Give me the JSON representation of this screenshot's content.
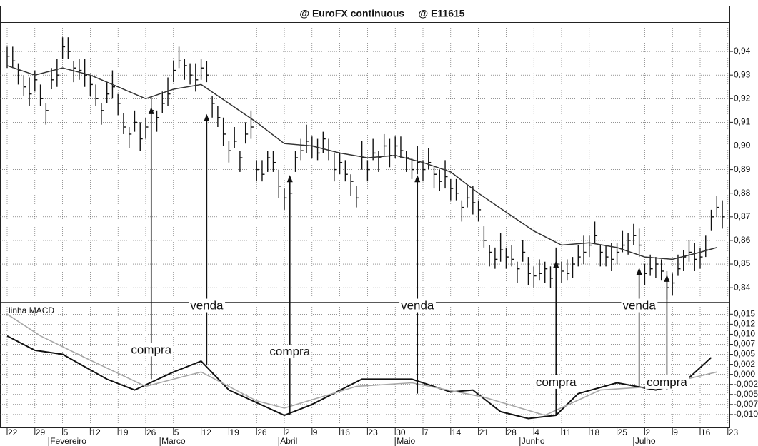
{
  "chart_data": [
    {
      "type": "ohlc",
      "title": "@ EuroFX continuous     @ E11615",
      "ylim": [
        0.8337,
        0.9518
      ],
      "yticks": [
        {
          "value": 0.94,
          "label": "0,94"
        },
        {
          "value": 0.93,
          "label": "0,93"
        },
        {
          "value": 0.92,
          "label": "0,92"
        },
        {
          "value": 0.91,
          "label": "0,91"
        },
        {
          "value": 0.9,
          "label": "0,90"
        },
        {
          "value": 0.89,
          "label": "0,89"
        },
        {
          "value": 0.88,
          "label": "0,88"
        },
        {
          "value": 0.87,
          "label": "0,87"
        },
        {
          "value": 0.86,
          "label": "0,86"
        },
        {
          "value": 0.85,
          "label": "0,85"
        },
        {
          "value": 0.84,
          "label": "0,84"
        }
      ],
      "grid": true,
      "color": "#111111",
      "high": [
        0.942,
        0.942,
        0.935,
        0.93,
        0.929,
        0.932,
        0.926,
        0.918,
        0.933,
        0.937,
        0.946,
        0.946,
        0.936,
        0.937,
        0.937,
        0.93,
        0.926,
        0.918,
        0.927,
        0.932,
        0.922,
        0.914,
        0.908,
        0.915,
        0.91,
        0.912,
        0.921,
        0.915,
        0.923,
        0.929,
        0.936,
        0.942,
        0.937,
        0.935,
        0.935,
        0.937,
        0.936,
        0.921,
        0.917,
        0.912,
        0.902,
        0.908,
        0.898,
        0.91,
        0.915,
        0.894,
        0.894,
        0.898,
        0.898,
        0.89,
        0.882,
        0.886,
        0.898,
        0.903,
        0.909,
        0.904,
        0.903,
        0.906,
        0.903,
        0.897,
        0.897,
        0.894,
        0.888,
        0.883,
        0.902,
        0.894,
        0.903,
        0.898,
        0.905,
        0.903,
        0.904,
        0.904,
        0.898,
        0.895,
        0.9,
        0.894,
        0.899,
        0.891,
        0.89,
        0.894,
        0.886,
        0.886,
        0.877,
        0.883,
        0.883,
        0.877,
        0.866,
        0.858,
        0.857,
        0.863,
        0.857,
        0.858,
        0.851,
        0.86,
        0.853,
        0.849,
        0.852,
        0.851,
        0.849,
        0.857,
        0.851,
        0.852,
        0.853,
        0.858,
        0.862,
        0.862,
        0.868,
        0.858,
        0.858,
        0.859,
        0.859,
        0.864,
        0.863,
        0.867,
        0.865,
        0.85,
        0.854,
        0.853,
        0.852,
        0.847,
        0.846,
        0.854,
        0.856,
        0.86,
        0.859,
        0.857,
        0.862,
        0.873,
        0.879,
        0.877
      ],
      "low": [
        0.933,
        0.933,
        0.926,
        0.921,
        0.917,
        0.923,
        0.917,
        0.909,
        0.924,
        0.925,
        0.937,
        0.937,
        0.927,
        0.928,
        0.925,
        0.921,
        0.917,
        0.909,
        0.918,
        0.92,
        0.913,
        0.905,
        0.899,
        0.906,
        0.898,
        0.903,
        0.912,
        0.906,
        0.914,
        0.917,
        0.927,
        0.933,
        0.928,
        0.926,
        0.923,
        0.928,
        0.927,
        0.912,
        0.908,
        0.9,
        0.893,
        0.899,
        0.889,
        0.901,
        0.903,
        0.885,
        0.885,
        0.889,
        0.889,
        0.878,
        0.873,
        0.877,
        0.889,
        0.894,
        0.897,
        0.895,
        0.894,
        0.897,
        0.894,
        0.885,
        0.888,
        0.885,
        0.879,
        0.874,
        0.89,
        0.885,
        0.894,
        0.889,
        0.896,
        0.891,
        0.895,
        0.895,
        0.889,
        0.886,
        0.888,
        0.885,
        0.89,
        0.882,
        0.881,
        0.882,
        0.877,
        0.877,
        0.868,
        0.874,
        0.871,
        0.868,
        0.857,
        0.849,
        0.848,
        0.851,
        0.848,
        0.849,
        0.842,
        0.851,
        0.841,
        0.84,
        0.843,
        0.842,
        0.84,
        0.845,
        0.842,
        0.843,
        0.844,
        0.849,
        0.85,
        0.853,
        0.859,
        0.849,
        0.849,
        0.847,
        0.85,
        0.855,
        0.854,
        0.858,
        0.853,
        0.841,
        0.845,
        0.844,
        0.843,
        0.835,
        0.837,
        0.845,
        0.847,
        0.851,
        0.847,
        0.848,
        0.853,
        0.864,
        0.87,
        0.865
      ],
      "close": [
        0.938,
        0.936,
        0.932,
        0.925,
        0.922,
        0.928,
        0.92,
        0.915,
        0.928,
        0.93,
        0.942,
        0.94,
        0.933,
        0.932,
        0.93,
        0.926,
        0.92,
        0.915,
        0.922,
        0.925,
        0.918,
        0.908,
        0.905,
        0.91,
        0.903,
        0.908,
        0.915,
        0.912,
        0.918,
        0.922,
        0.932,
        0.936,
        0.934,
        0.93,
        0.928,
        0.933,
        0.93,
        0.918,
        0.912,
        0.905,
        0.898,
        0.902,
        0.895,
        0.905,
        0.908,
        0.89,
        0.888,
        0.895,
        0.893,
        0.883,
        0.878,
        0.88,
        0.895,
        0.898,
        0.902,
        0.9,
        0.897,
        0.903,
        0.898,
        0.89,
        0.893,
        0.888,
        0.885,
        0.878,
        0.895,
        0.89,
        0.897,
        0.895,
        0.9,
        0.896,
        0.9,
        0.898,
        0.895,
        0.89,
        0.893,
        0.89,
        0.893,
        0.888,
        0.885,
        0.887,
        0.882,
        0.88,
        0.874,
        0.878,
        0.876,
        0.873,
        0.86,
        0.855,
        0.852,
        0.856,
        0.853,
        0.852,
        0.848,
        0.855,
        0.846,
        0.845,
        0.846,
        0.848,
        0.844,
        0.85,
        0.847,
        0.846,
        0.85,
        0.853,
        0.855,
        0.858,
        0.862,
        0.855,
        0.853,
        0.852,
        0.855,
        0.858,
        0.86,
        0.862,
        0.858,
        0.846,
        0.848,
        0.85,
        0.847,
        0.84,
        0.842,
        0.848,
        0.853,
        0.855,
        0.852,
        0.853,
        0.856,
        0.87,
        0.874,
        0.87
      ],
      "moving_average": {
        "color": "#333333",
        "x": [
          0,
          5,
          10,
          15,
          20,
          25,
          30,
          35,
          40,
          45,
          50,
          55,
          60,
          65,
          70,
          75,
          80,
          85,
          90,
          95,
          100,
          105,
          110,
          115,
          120,
          125,
          128
        ],
        "values": [
          0.934,
          0.93,
          0.933,
          0.93,
          0.925,
          0.92,
          0.924,
          0.926,
          0.918,
          0.91,
          0.901,
          0.9,
          0.897,
          0.895,
          0.896,
          0.893,
          0.889,
          0.88,
          0.872,
          0.864,
          0.858,
          0.859,
          0.857,
          0.853,
          0.852,
          0.855,
          0.857
        ]
      }
    },
    {
      "type": "line",
      "label": "linha MACD",
      "ylim": [
        -0.0134,
        0.0179
      ],
      "yticks": [
        {
          "value": 0.015,
          "label": "0,015"
        },
        {
          "value": 0.0125,
          "label": "0,012"
        },
        {
          "value": 0.01,
          "label": "0,010"
        },
        {
          "value": 0.0075,
          "label": "0,007"
        },
        {
          "value": 0.005,
          "label": "0,005"
        },
        {
          "value": 0.0025,
          "label": "0,002"
        },
        {
          "value": 0,
          "label": "0,000"
        },
        {
          "value": -0.0025,
          "label": "-0,002"
        },
        {
          "value": -0.005,
          "label": "-0,005"
        },
        {
          "value": -0.0075,
          "label": "-0,007"
        },
        {
          "value": -0.01,
          "label": "-0,010"
        }
      ],
      "xlim": [
        -1,
        130.5
      ],
      "xticks": [
        {
          "value": 0,
          "label": "22"
        },
        {
          "value": 5,
          "label": "29"
        },
        {
          "value": 10,
          "label": "5"
        },
        {
          "value": 15,
          "label": "12"
        },
        {
          "value": 20,
          "label": "19"
        },
        {
          "value": 25,
          "label": "26"
        },
        {
          "value": 30,
          "label": "5"
        },
        {
          "value": 35,
          "label": "12"
        },
        {
          "value": 40,
          "label": "19"
        },
        {
          "value": 45,
          "label": "26"
        },
        {
          "value": 50,
          "label": "2"
        },
        {
          "value": 55,
          "label": "9"
        },
        {
          "value": 60,
          "label": "16"
        },
        {
          "value": 65,
          "label": "23"
        },
        {
          "value": 70,
          "label": "30"
        },
        {
          "value": 75,
          "label": "7"
        },
        {
          "value": 80,
          "label": "14"
        },
        {
          "value": 85,
          "label": "21"
        },
        {
          "value": 90,
          "label": "28"
        },
        {
          "value": 95,
          "label": "4"
        },
        {
          "value": 100,
          "label": "11"
        },
        {
          "value": 105,
          "label": "18"
        },
        {
          "value": 110,
          "label": "25"
        },
        {
          "value": 115,
          "label": "2"
        },
        {
          "value": 120,
          "label": "9"
        },
        {
          "value": 125,
          "label": "16"
        },
        {
          "value": 130,
          "label": "23"
        }
      ],
      "months": [
        {
          "label": "Fevereiro",
          "x": 7.5
        },
        {
          "label": "Marco",
          "x": 27.6
        },
        {
          "label": "Abril",
          "x": 49
        },
        {
          "label": "Maio",
          "x": 70
        },
        {
          "label": "Junho",
          "x": 92.5
        },
        {
          "label": "Julho",
          "x": 113
        }
      ],
      "grid": true,
      "series": [
        {
          "color": "#111111",
          "x": [
            0,
            5,
            10,
            18,
            23,
            30,
            35,
            40,
            50,
            55,
            64,
            73,
            80,
            84,
            89,
            94,
            99,
            103,
            110,
            117,
            122,
            127
          ],
          "values": [
            0.0096,
            0.006,
            0.005,
            -0.0012,
            -0.0039,
            0.0006,
            0.0033,
            -0.0039,
            -0.0102,
            -0.0075,
            -0.0012,
            -0.0012,
            -0.0044,
            -0.0039,
            -0.0093,
            -0.011,
            -0.0102,
            -0.0048,
            -0.0021,
            -0.0039,
            -0.0021,
            0.0042
          ]
        },
        {
          "color": "#a8a8a8",
          "x": [
            0,
            6,
            14,
            25,
            35,
            45,
            50,
            63,
            73,
            86,
            97,
            107,
            117,
            128
          ],
          "values": [
            0.015,
            0.0096,
            0.0042,
            -0.003,
            0.0006,
            -0.0066,
            -0.0084,
            -0.003,
            -0.0021,
            -0.0057,
            -0.0102,
            -0.0039,
            -0.003,
            0.0006
          ]
        }
      ],
      "annotations": [
        {
          "text": "compra",
          "x": 26,
          "y": 0.006,
          "arrow_from": -0.0012,
          "arrow_to": 0.9165
        },
        {
          "text": "venda",
          "x": 36,
          "y": 0.017,
          "arrow_from": 0.0024,
          "arrow_to": 0.9135
        },
        {
          "text": "compra",
          "x": 51,
          "y": 0.0055,
          "arrow_from": -0.0102,
          "arrow_to": 0.8877
        },
        {
          "text": "venda",
          "x": 74,
          "y": 0.017,
          "arrow_from": -0.0048,
          "arrow_to": 0.8877
        },
        {
          "text": "compra",
          "x": 99,
          "y": -0.0021,
          "arrow_from": -0.0102,
          "arrow_to": 0.8515
        },
        {
          "text": "venda",
          "x": 114,
          "y": 0.017,
          "arrow_from": -0.003,
          "arrow_to": 0.8485
        },
        {
          "text": "compra",
          "x": 119,
          "y": -0.0021,
          "arrow_from": -0.0039,
          "arrow_to": 0.8455
        }
      ]
    }
  ]
}
